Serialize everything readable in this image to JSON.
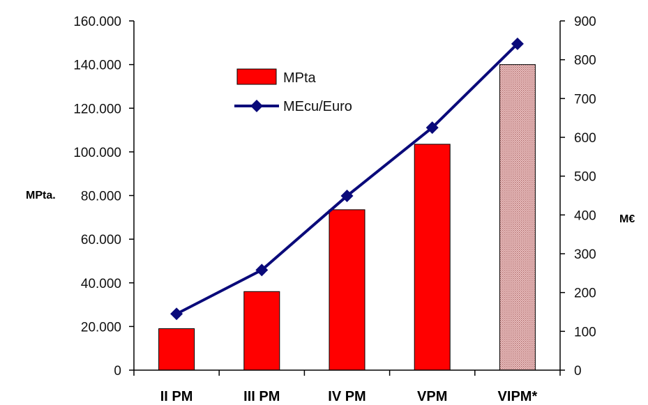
{
  "chart_data": {
    "type": "bar",
    "categories": [
      "II PM",
      "III PM",
      "IV PM",
      "VPM",
      "VIPM*"
    ],
    "series": [
      {
        "name": "MPta",
        "type": "bar",
        "axis": "left",
        "values": [
          19000,
          36000,
          73500,
          103500,
          140000
        ],
        "color": "#ff0000",
        "last_bar_color": "#e8a5a5"
      },
      {
        "name": "MEcu/Euro",
        "type": "line",
        "axis": "right",
        "values": [
          145,
          258,
          449,
          625,
          841
        ],
        "color": "#0a0a7a"
      }
    ],
    "ylabel": "MPta.",
    "y2label": "M€",
    "ylim": [
      0,
      160000
    ],
    "y2lim": [
      0,
      900
    ],
    "yticks": [
      "0",
      "20.000",
      "40.000",
      "60.000",
      "80.000",
      "100.000",
      "120.000",
      "140.000",
      "160.000"
    ],
    "y2ticks": [
      "0",
      "100",
      "200",
      "300",
      "400",
      "500",
      "600",
      "700",
      "800",
      "900"
    ],
    "legend": {
      "position": "top-left"
    },
    "grid": false
  }
}
